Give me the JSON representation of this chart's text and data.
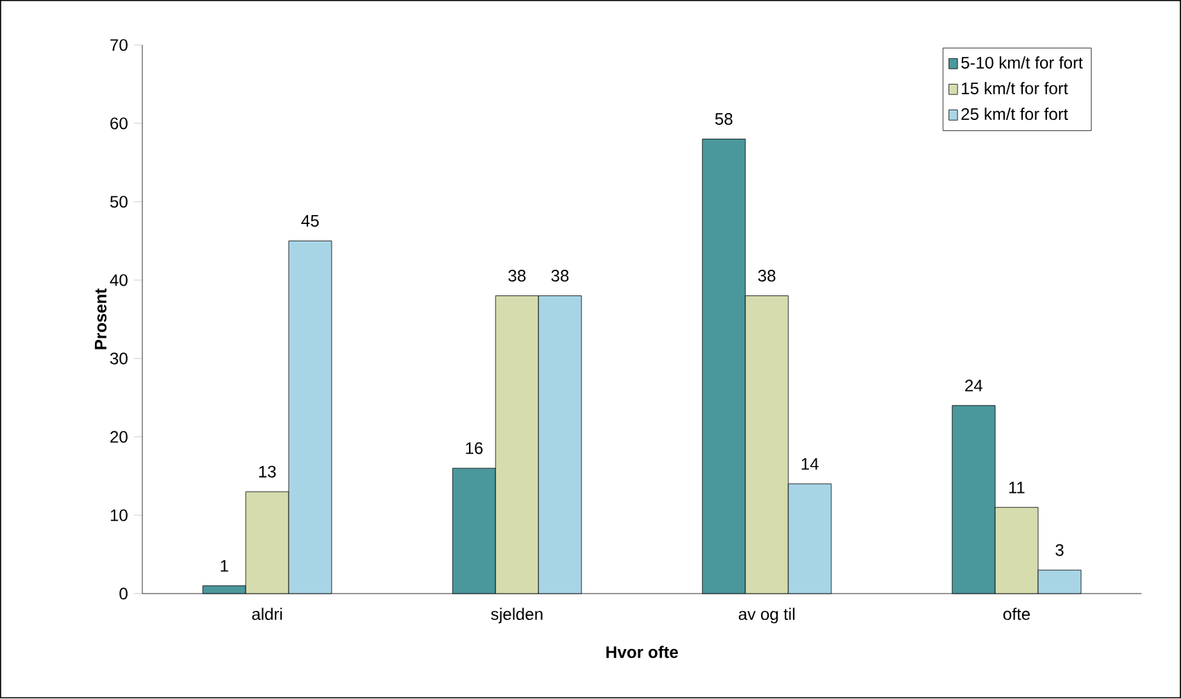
{
  "chart_data": {
    "type": "bar",
    "xlabel": "Hvor ofte",
    "ylabel": "Prosent",
    "categories": [
      "aldri",
      "sjelden",
      "av og til",
      "ofte"
    ],
    "series": [
      {
        "name": "5-10 km/t for fort",
        "color": "#4a979c",
        "values": [
          1,
          16,
          58,
          24
        ]
      },
      {
        "name": "15 km/t for fort",
        "color": "#d6dcae",
        "values": [
          13,
          38,
          38,
          11
        ]
      },
      {
        "name": "25 km/t for fort",
        "color": "#a8d5e6",
        "values": [
          45,
          38,
          14,
          3
        ]
      }
    ],
    "ylim": [
      0,
      70
    ],
    "yticks": [
      0,
      10,
      20,
      30,
      40,
      50,
      60,
      70
    ],
    "data_labels": true,
    "legend": "top right",
    "grid": false
  }
}
